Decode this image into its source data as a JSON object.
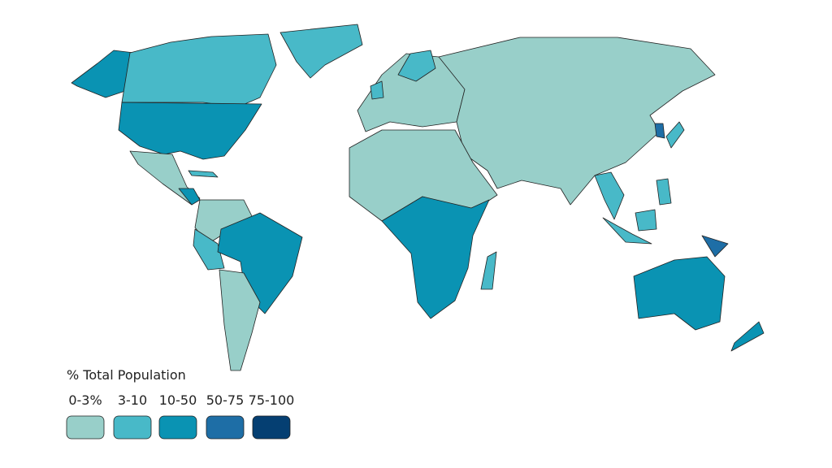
{
  "legend": {
    "title": "% Total Population",
    "items": [
      {
        "label": "0-3%",
        "color": "#98cfc9"
      },
      {
        "label": "3-10",
        "color": "#48b9c8"
      },
      {
        "label": "10-50",
        "color": "#0a93b3"
      },
      {
        "label": "50-75",
        "color": "#1e6ea6"
      },
      {
        "label": "75-100",
        "color": "#053f72"
      }
    ]
  }
}
